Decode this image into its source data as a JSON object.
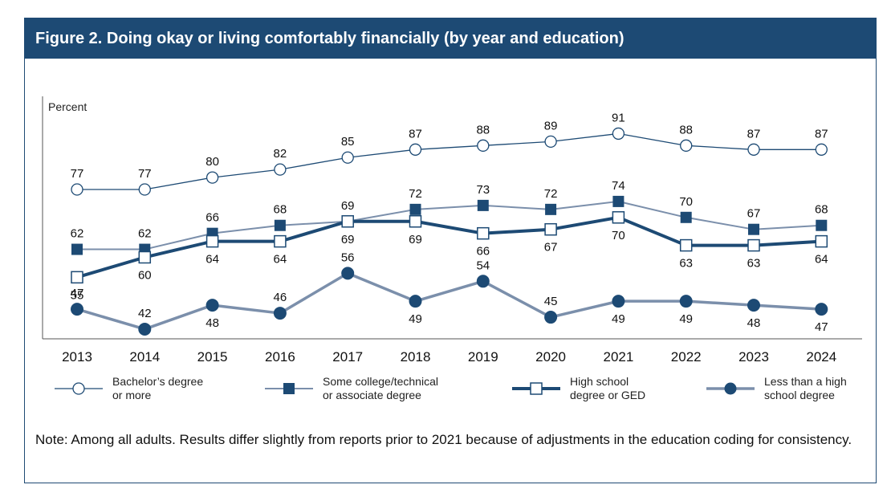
{
  "figure_title": "Figure 2. Doing okay or living comfortably financially (by year and education)",
  "note": "Note: Among all adults. Results differ slightly from reports prior to 2021 because of adjustments in the education coding for consistency.",
  "colors": {
    "header_bg": "#1d4a74",
    "dark": "#1d4a74",
    "light": "#7b8fab",
    "frame": "#1f4a73"
  },
  "chart_data": {
    "type": "line",
    "ylabel": "Percent",
    "xlabel": "",
    "x": [
      "2013",
      "2014",
      "2015",
      "2016",
      "2017",
      "2018",
      "2019",
      "2020",
      "2021",
      "2022",
      "2023",
      "2024"
    ],
    "ylim": [
      40,
      95
    ],
    "grid": false,
    "legend_position": "bottom",
    "series": [
      {
        "name": "Bachelor's degree or more",
        "legend_lines": [
          "Bachelor’s degree",
          "or more"
        ],
        "values": [
          77,
          77,
          80,
          82,
          85,
          87,
          88,
          89,
          91,
          88,
          87,
          87
        ],
        "marker": "circle-open",
        "line": "thin",
        "labels_pos": "above"
      },
      {
        "name": "Some college/technical or associate degree",
        "legend_lines": [
          "Some college/technical",
          "or associate degree"
        ],
        "values": [
          62,
          62,
          66,
          68,
          69,
          72,
          73,
          72,
          74,
          70,
          67,
          68
        ],
        "marker": "square-filled",
        "line": "thin",
        "labels_pos": "above"
      },
      {
        "name": "High school degree or GED",
        "legend_lines": [
          "High school",
          "degree or GED"
        ],
        "values": [
          55,
          60,
          64,
          64,
          69,
          69,
          66,
          67,
          70,
          63,
          63,
          64
        ],
        "marker": "square-open",
        "line": "thick",
        "labels_pos": "below"
      },
      {
        "name": "Less than a high school degree",
        "legend_lines": [
          "Less than a high",
          "school degree"
        ],
        "values": [
          47,
          42,
          48,
          46,
          56,
          49,
          54,
          45,
          49,
          49,
          48,
          47
        ],
        "marker": "circle-filled",
        "line": "thick-light",
        "labels_pos": "mixed"
      }
    ]
  }
}
